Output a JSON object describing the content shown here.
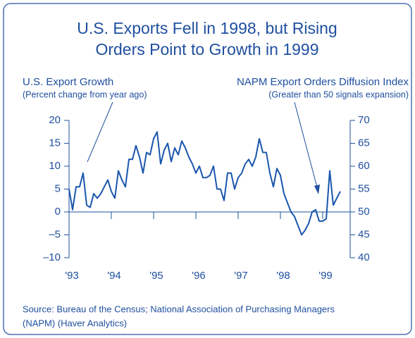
{
  "chart_data": {
    "type": "line",
    "title": "U.S. Exports Fell in 1998, but Rising",
    "subtitle": "Orders Point to Growth in 1999",
    "annotations": [
      "U.S. Export Growth",
      "(Percent change from year ago)",
      "NAPM Export Orders Diffusion Index",
      "(Greater than 50 signals expansion)"
    ],
    "source": [
      "Source: Bureau of the Census; National Association of Purchasing Managers",
      "(NAPM) (Haver Analytics)"
    ],
    "color": "#1a56ad",
    "values": [
      5,
      0.5,
      5.5,
      5.5,
      8.5,
      1.5,
      1,
      4,
      3,
      4,
      5.5,
      7,
      4.5,
      3,
      9,
      7,
      5.5,
      11.5,
      11.5,
      14.5,
      12,
      8.5,
      13,
      12.5,
      16,
      17.5,
      10.5,
      13.5,
      15,
      11,
      14,
      12.5,
      15.5,
      14,
      12,
      10.5,
      8.5,
      10,
      7.5,
      7.5,
      8,
      10,
      5,
      5,
      2.5,
      8.5,
      8.5,
      5,
      7.5,
      8.5,
      10.5,
      11.5,
      10,
      12,
      16,
      13,
      13,
      8.5,
      5.5,
      9.5,
      8,
      4,
      2,
      0,
      -1,
      -3,
      -5,
      -4,
      -2.5,
      0,
      0.5,
      -2,
      -2,
      -1.5,
      9,
      1.5,
      3,
      4.5
    ],
    "xlim": [
      0,
      79.8
    ],
    "xticks": [
      {
        "value": 0,
        "label": "'93"
      },
      {
        "value": 12,
        "label": "'94"
      },
      {
        "value": 24,
        "label": "'95"
      },
      {
        "value": 36,
        "label": "'96"
      },
      {
        "value": 48,
        "label": "'97"
      },
      {
        "value": 60,
        "label": "'98"
      },
      {
        "value": 72,
        "label": "'99"
      }
    ],
    "ylim": [
      -10,
      20
    ],
    "yticks": [
      {
        "value": -10,
        "label": "–10"
      },
      {
        "value": -5,
        "label": "–5"
      },
      0,
      5,
      10,
      15,
      20
    ],
    "y2lim": [
      40,
      70
    ],
    "y2ticks": [
      40,
      45,
      50,
      55,
      60,
      65,
      70
    ]
  }
}
